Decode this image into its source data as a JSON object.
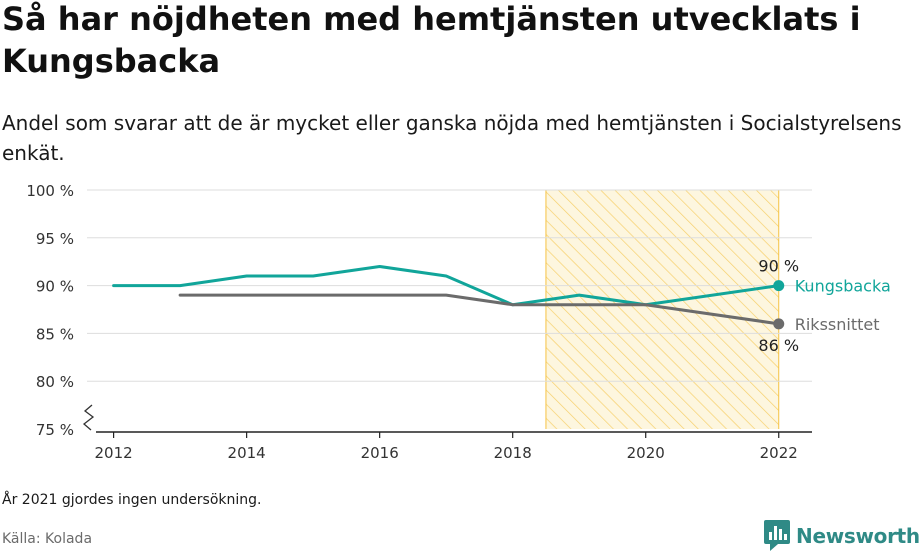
{
  "title": "Så har nöjdheten med hemtjänsten utvecklats i Kungsbacka",
  "subtitle": "Andel som svarar att de är mycket eller ganska nöjda med hemtjänsten i Socialstyrelsens enkät.",
  "note": "År 2021 gjordes ingen undersökning.",
  "source": "Källa: Kolada",
  "brand": "Newsworthy",
  "colors": {
    "kungsbacka": "#11a59a",
    "riks": "#6b6b6b",
    "highlight": "#f5c242",
    "grid": "#dddddd",
    "brand": "#2f8a86"
  },
  "chart_data": {
    "type": "line",
    "x_ticks": [
      2012,
      2014,
      2016,
      2018,
      2020,
      2022
    ],
    "x_tick_labels": [
      "2012",
      "2014",
      "2016",
      "2018",
      "2020",
      "2022"
    ],
    "y_ticks": [
      75,
      80,
      85,
      90,
      95,
      100
    ],
    "y_tick_labels": [
      "75 %",
      "80 %",
      "85 %",
      "90 %",
      "95 %",
      "100 %"
    ],
    "ylim": [
      75,
      100
    ],
    "xlim": [
      2011.6,
      2022.5
    ],
    "grid": true,
    "y_axis_break": true,
    "highlight_range": [
      2018.5,
      2022
    ],
    "series": [
      {
        "name": "Kungsbacka",
        "color_key": "kungsbacka",
        "x": [
          2012,
          2013,
          2014,
          2015,
          2016,
          2017,
          2018,
          2019,
          2020,
          2022
        ],
        "y": [
          90,
          90,
          91,
          91,
          92,
          91,
          88,
          89,
          88,
          90
        ],
        "end_label": "90 %"
      },
      {
        "name": "Rikssnittet",
        "color_key": "riks",
        "x": [
          2013,
          2014,
          2015,
          2016,
          2017,
          2018,
          2019,
          2020,
          2022
        ],
        "y": [
          89,
          89,
          89,
          89,
          89,
          88,
          88,
          88,
          86
        ],
        "end_label": "86 %"
      }
    ]
  }
}
